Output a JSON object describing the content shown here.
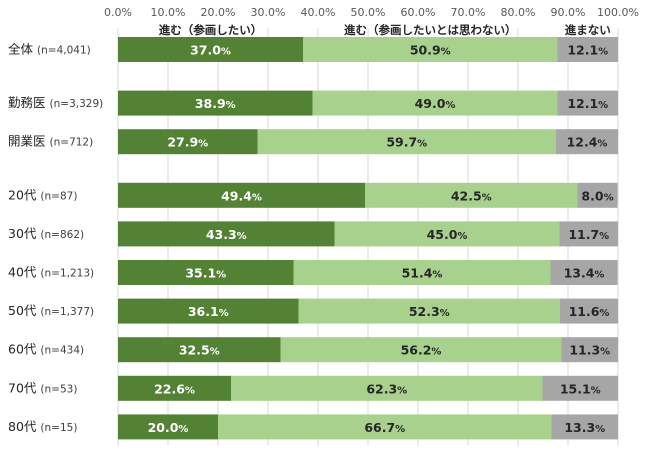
{
  "chart_data": {
    "type": "bar",
    "orientation": "horizontal",
    "stacked": true,
    "percent_stacked": true,
    "xlim": [
      0,
      100
    ],
    "x_ticks": [
      "0.0%",
      "10.0%",
      "20.0%",
      "30.0%",
      "40.0%",
      "50.0%",
      "60.0%",
      "70.0%",
      "80.0%",
      "90.0%",
      "100.0%"
    ],
    "grid": true,
    "legend_position": "top (labels above segments)",
    "series": [
      {
        "name": "進む（参画したい）",
        "color": "#548235"
      },
      {
        "name": "進む（参画したいとは思わない）",
        "color": "#a9d18e"
      },
      {
        "name": "進まない",
        "color": "#a6a6a6"
      }
    ],
    "categories": [
      {
        "label": "全体",
        "n": "(n=4,041)",
        "values": [
          37.0,
          50.9,
          12.1
        ],
        "group": 0
      },
      {
        "label": "勤務医",
        "n": "(n=3,329)",
        "values": [
          38.9,
          49.0,
          12.1
        ],
        "group": 1
      },
      {
        "label": "開業医",
        "n": "(n=712)",
        "values": [
          27.9,
          59.7,
          12.4
        ],
        "group": 1
      },
      {
        "label": "20代",
        "n": "(n=87)",
        "values": [
          49.4,
          42.5,
          8.0
        ],
        "group": 2
      },
      {
        "label": "30代",
        "n": "(n=862)",
        "values": [
          43.3,
          45.0,
          11.7
        ],
        "group": 2
      },
      {
        "label": "40代",
        "n": "(n=1,213)",
        "values": [
          35.1,
          51.4,
          13.4
        ],
        "group": 2
      },
      {
        "label": "50代",
        "n": "(n=1,377)",
        "values": [
          36.1,
          52.3,
          11.6
        ],
        "group": 2
      },
      {
        "label": "60代",
        "n": "(n=434)",
        "values": [
          32.5,
          56.2,
          11.3
        ],
        "group": 2
      },
      {
        "label": "70代",
        "n": "(n=53)",
        "values": [
          22.6,
          62.3,
          15.1
        ],
        "group": 2
      },
      {
        "label": "80代",
        "n": "(n=15)",
        "values": [
          20.0,
          66.7,
          13.3
        ],
        "group": 2
      }
    ]
  }
}
